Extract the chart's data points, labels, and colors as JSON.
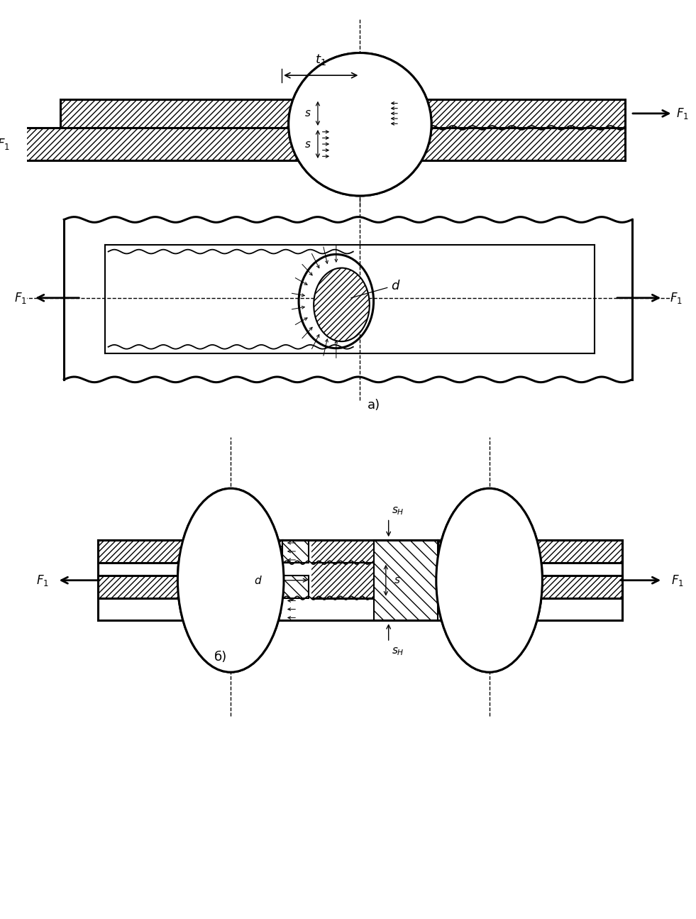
{
  "bg_color": "#ffffff",
  "fig_width": 9.81,
  "fig_height": 12.95,
  "dpi": 100,
  "lw": 1.5,
  "lw_thick": 2.2
}
